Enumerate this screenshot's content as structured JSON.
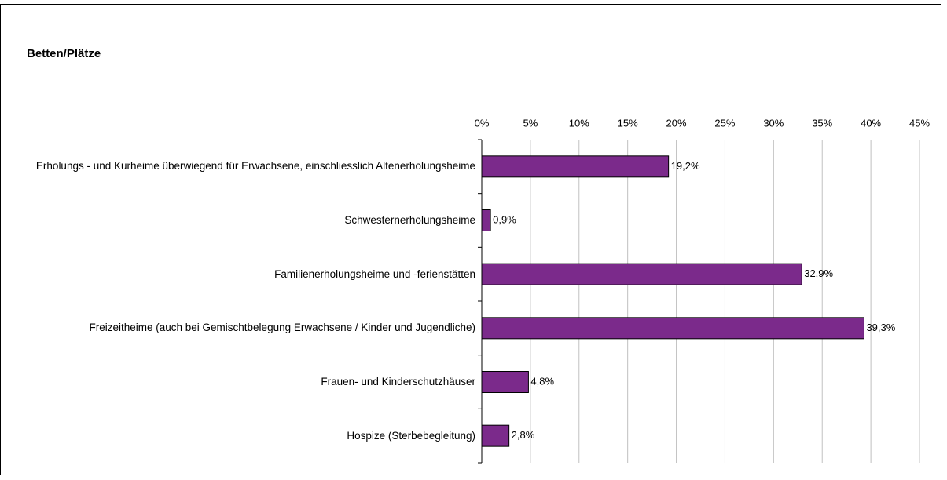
{
  "chart_data": {
    "type": "bar",
    "orientation": "horizontal",
    "title": "Betten/Plätze",
    "categories": [
      "Erholungs - und Kurheime überwiegend für Erwachsene, einschliesslich Altenerholungsheime",
      "Schwesternerholungsheime",
      "Familienerholungsheime und -ferienstätten",
      "Freizeitheime  (auch bei Gemischtbelegung Erwachsene / Kinder und Jugendliche)",
      "Frauen- und Kinderschutzhäuser",
      "Hospize (Sterbebegleitung)"
    ],
    "values": [
      19.2,
      0.9,
      32.9,
      39.3,
      4.8,
      2.8
    ],
    "value_labels": [
      "19,2%",
      "0,9%",
      "32,9%",
      "39,3%",
      "4,8%",
      "2,8%"
    ],
    "color": "#7b2a8b",
    "xlim": [
      0,
      45
    ],
    "xticks": [
      {
        "value": 0,
        "label": "0%"
      },
      {
        "value": 5,
        "label": "5%"
      },
      {
        "value": 10,
        "label": "10%"
      },
      {
        "value": 15,
        "label": "15%"
      },
      {
        "value": 20,
        "label": "20%"
      },
      {
        "value": 25,
        "label": "25%"
      },
      {
        "value": 30,
        "label": "30%"
      },
      {
        "value": 35,
        "label": "35%"
      },
      {
        "value": 40,
        "label": "40%"
      },
      {
        "value": 45,
        "label": "45%"
      }
    ],
    "grid": true
  }
}
